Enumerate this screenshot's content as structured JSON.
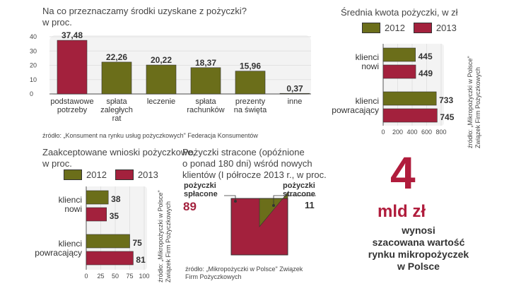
{
  "colors": {
    "y2012": "#6b6e1a",
    "y2013": "#a3213d",
    "grid": "#e2e2e2",
    "accent": "#b01c3c"
  },
  "legend": {
    "y2012": "2012",
    "y2013": "2013"
  },
  "panel1": {
    "title_line1": "Na co przeznaczamy środki uzyskane z pożyczki?",
    "title_line2": "w proc.",
    "source": "źródło: „Konsument na rynku usług pożyczkowych\" Federacja Konsumentów"
  },
  "panel2": {
    "title": "Średnia kwota pożyczki, w zł",
    "source_line1": "źródło: „Mikropożyczki w Polsce\"",
    "source_line2": "Związek Firm Pożyczkowych"
  },
  "panel3": {
    "title_line1": "Zaakceptowane wnioski pożyczkowe,",
    "title_line2": "w proc.",
    "source_line1": "źródło: „Mikropożyczki w Polsce\"",
    "source_line2": "Związek Firm Pożyczkowych"
  },
  "panel4": {
    "title_line1": "Pożyczki stracone (opóźnione",
    "title_line2": "o ponad 180 dni) wśród nowych",
    "title_line3": "klientów (I półrocze 2013 r., w proc.",
    "label_repaid_line1": "pożyczki",
    "label_repaid_line2": "spłacone",
    "label_lost_line1": "pożyczki",
    "label_lost_line2": "stracone",
    "value_repaid": "89",
    "value_lost": "11",
    "source_line1": "źródło: „Mikropożyczki w Polsce\" Związek",
    "source_line2": "Firm Pożyczkowych"
  },
  "headline": {
    "number": "4",
    "unit": "mld zł",
    "desc_line1": "wynosi",
    "desc_line2": "szacowana wartość",
    "desc_line3": "rynku mikropożyczek",
    "desc_line4": "w Polsce"
  },
  "chart_data": [
    {
      "type": "bar",
      "ylabel": "w proc.",
      "ylim": [
        0,
        40
      ],
      "yticks": [
        "0",
        "10",
        "20",
        "30",
        "40"
      ],
      "categories": [
        [
          "podstawowe",
          "potrzeby"
        ],
        [
          "spłata",
          "zaległych",
          "rat"
        ],
        [
          "leczenie"
        ],
        [
          "spłata",
          "rachunków"
        ],
        [
          "prezenty",
          "na święta"
        ],
        [
          "inne"
        ]
      ],
      "values": [
        37.48,
        22.26,
        20.22,
        18.37,
        15.96,
        0.37
      ],
      "value_labels": [
        "37,48",
        "22,26",
        "20,22",
        "18,37",
        "15,96",
        "0,37"
      ]
    },
    {
      "type": "bar",
      "orientation": "horizontal",
      "xlim": [
        0,
        800
      ],
      "xticks": [
        "0",
        "200",
        "400",
        "600",
        "800"
      ],
      "categories": [
        [
          "klienci",
          "nowi"
        ],
        [
          "klienci",
          "powracający"
        ]
      ],
      "series": [
        {
          "name": "2012",
          "values": [
            445,
            733
          ],
          "labels": [
            "445",
            "733"
          ]
        },
        {
          "name": "2013",
          "values": [
            449,
            745
          ],
          "labels": [
            "449",
            "745"
          ]
        }
      ]
    },
    {
      "type": "bar",
      "orientation": "horizontal",
      "xlim": [
        0,
        100
      ],
      "xticks": [
        "0",
        "25",
        "50",
        "75",
        "100"
      ],
      "categories": [
        [
          "klienci",
          "nowi"
        ],
        [
          "klienci",
          "powracający"
        ]
      ],
      "series": [
        {
          "name": "2012",
          "values": [
            38,
            75
          ],
          "labels": [
            "38",
            "75"
          ]
        },
        {
          "name": "2013",
          "values": [
            35,
            81
          ],
          "labels": [
            "35",
            "81"
          ]
        }
      ]
    },
    {
      "type": "pie",
      "slices": [
        {
          "label": "pożyczki spłacone",
          "value": 89
        },
        {
          "label": "pożyczki stracone",
          "value": 11
        }
      ]
    }
  ]
}
